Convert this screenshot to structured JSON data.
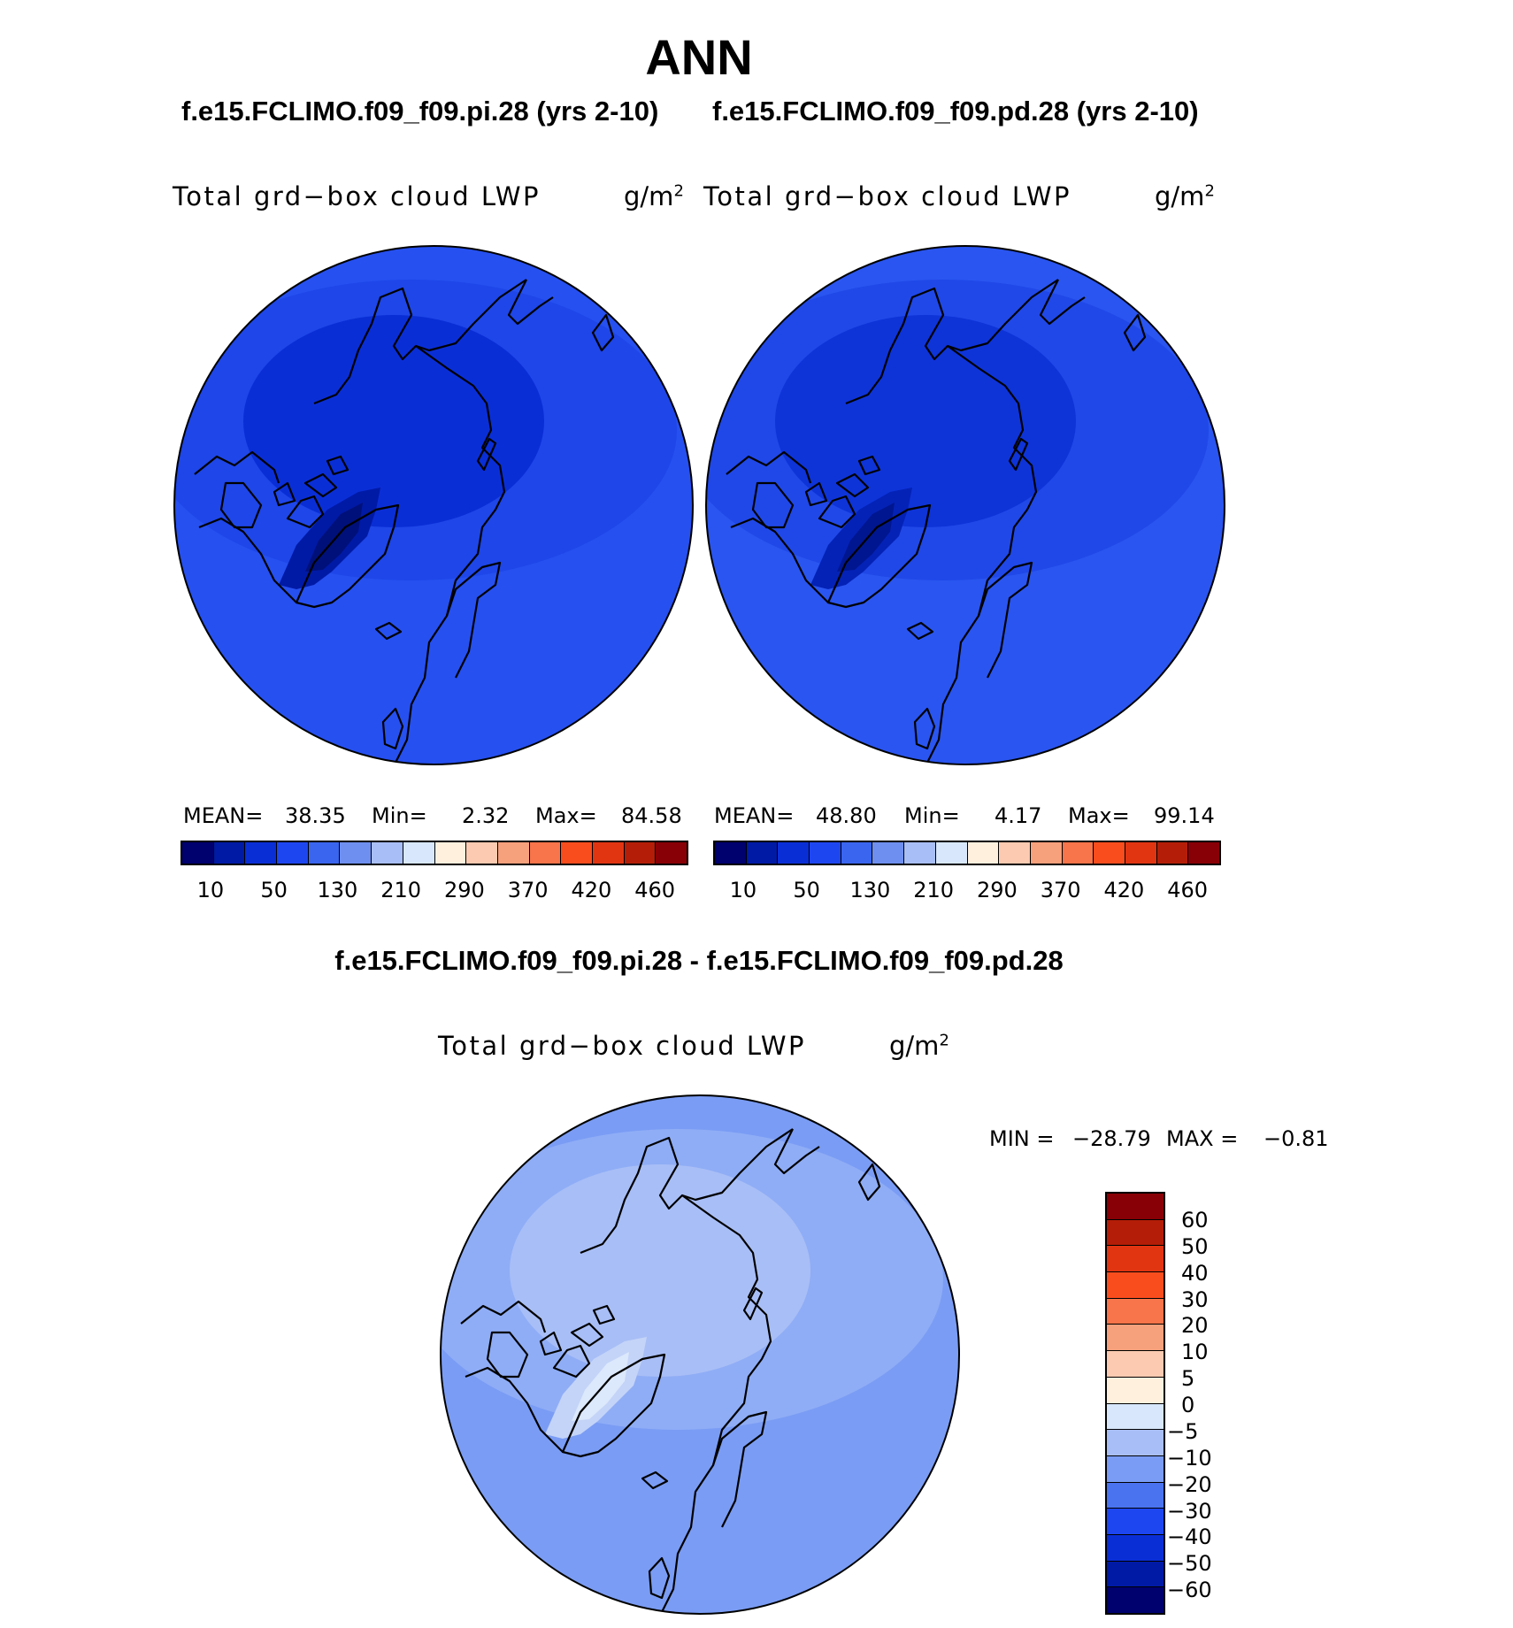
{
  "title": "ANN",
  "left_case": "f.e15.FCLIMO.f09_f09.pi.28 (yrs 2-10)",
  "right_case": "f.e15.FCLIMO.f09_f09.pd.28 (yrs 2-10)",
  "diff_title": "f.e15.FCLIMO.f09_f09.pi.28 - f.e15.FCLIMO.f09_f09.pd.28",
  "variable": "Total grd−box cloud LWP",
  "units_base": "g/m",
  "units_exp": "2",
  "panels": {
    "left": {
      "mean_label": "MEAN=",
      "mean": "38.35",
      "min_label": "Min=",
      "min": "2.32",
      "max_label": "Max=",
      "max": "84.58"
    },
    "right": {
      "mean_label": "MEAN=",
      "mean": "48.80",
      "min_label": "Min=",
      "min": "4.17",
      "max_label": "Max=",
      "max": "99.14"
    }
  },
  "diff_stats": {
    "min_label": "MIN =",
    "min": "−28.79",
    "max_label": "MAX =",
    "max": "−0.81"
  },
  "abs_colorbar": {
    "colors": [
      "#00006e",
      "#001aa6",
      "#0a2ed6",
      "#1e46f0",
      "#3a65ee",
      "#6e8ff0",
      "#a8bef6",
      "#d8e7fb",
      "#fff0de",
      "#fbcab0",
      "#f7a07c",
      "#f8744a",
      "#fa4d1e",
      "#e13512",
      "#b41e08",
      "#880005"
    ],
    "labels": [
      "10",
      "50",
      "130",
      "210",
      "290",
      "370",
      "420",
      "460"
    ]
  },
  "diff_colorbar": {
    "colors": [
      "#880005",
      "#b41e08",
      "#e13512",
      "#fa4d1e",
      "#f8744a",
      "#f7a07c",
      "#fbcab0",
      "#fff0de",
      "#d8e7fb",
      "#a8bef6",
      "#7a9cf4",
      "#4a73f0",
      "#1e46f0",
      "#0a2ed6",
      "#001aa6",
      "#00006e"
    ],
    "labels": [
      "60",
      "50",
      "40",
      "30",
      "20",
      "10",
      "5",
      "0",
      "−5",
      "−10",
      "−20",
      "−30",
      "−40",
      "−50",
      "−60"
    ]
  },
  "map_colors": {
    "left": {
      "base": "#2650f0",
      "ring": "#1e46e8",
      "core": "#0a2ed6",
      "green": "#001aa6",
      "green_core": "#00107a"
    },
    "right": {
      "base": "#2a55f0",
      "ring": "#2048e8",
      "core": "#0e34d8",
      "green": "#0422b6",
      "green_core": "#001690"
    },
    "diff": {
      "base": "#7a9cf4",
      "ring": "#8fadf6",
      "core": "#a8bef6",
      "green": "#c4d4f8",
      "green_core": "#dce8fb"
    }
  }
}
